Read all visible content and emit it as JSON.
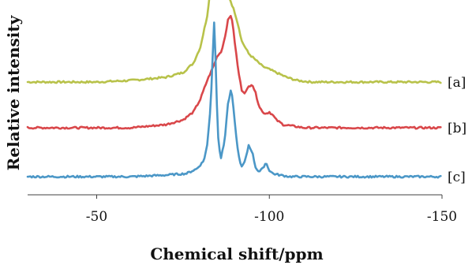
{
  "chart_data": {
    "type": "line",
    "xlabel": "Chemical shift/ppm",
    "ylabel": "Relative intensity",
    "xlim": [
      -30,
      -150
    ],
    "x_reversed": true,
    "x_ticks": [
      -50,
      -100,
      -150
    ],
    "x_tick_labels": [
      "-50",
      "-100",
      "-150"
    ],
    "y_ticks_shown": false,
    "grid": false,
    "legend": "none",
    "series": [
      {
        "name": "[a]",
        "color": "#b8c24a",
        "baseline": 0.6,
        "x": [
          -30,
          -40,
          -50,
          -60,
          -70,
          -75,
          -78,
          -80,
          -82,
          -84,
          -85,
          -86,
          -87,
          -88,
          -89,
          -90,
          -91,
          -92,
          -93,
          -94,
          -95,
          -96,
          -98,
          -100,
          -102,
          -105,
          -108,
          -112,
          -120,
          -130,
          -140,
          -150
        ],
        "y": [
          0,
          0,
          0,
          0.01,
          0.03,
          0.06,
          0.12,
          0.22,
          0.42,
          0.8,
          0.96,
          0.9,
          0.7,
          0.56,
          0.5,
          0.44,
          0.36,
          0.26,
          0.22,
          0.18,
          0.16,
          0.14,
          0.1,
          0.08,
          0.06,
          0.03,
          0.01,
          0,
          0,
          0,
          0,
          0
        ]
      },
      {
        "name": "[b]",
        "color": "#d9474a",
        "baseline": 0.31,
        "x": [
          -30,
          -40,
          -50,
          -60,
          -70,
          -75,
          -78,
          -80,
          -82,
          -84,
          -85,
          -86,
          -87,
          -88,
          -89,
          -90,
          -91,
          -92,
          -93,
          -94,
          -95,
          -96,
          -97,
          -98,
          -99,
          -100,
          -101,
          -102,
          -104,
          -107,
          -110,
          -120,
          -130,
          -140,
          -150
        ],
        "y": [
          0,
          0,
          0,
          0,
          0.02,
          0.05,
          0.1,
          0.18,
          0.3,
          0.4,
          0.46,
          0.48,
          0.56,
          0.68,
          0.72,
          0.54,
          0.36,
          0.24,
          0.22,
          0.26,
          0.28,
          0.22,
          0.14,
          0.1,
          0.09,
          0.1,
          0.08,
          0.05,
          0.02,
          0.01,
          0,
          0,
          0,
          0,
          0
        ]
      },
      {
        "name": "[c]",
        "color": "#4b97c7",
        "baseline": 0.0,
        "x": [
          -30,
          -40,
          -50,
          -60,
          -70,
          -76,
          -79,
          -81,
          -82,
          -83,
          -83.5,
          -84,
          -84.5,
          -85,
          -85.5,
          -86,
          -87,
          -88,
          -89,
          -90,
          -91,
          -92,
          -93,
          -94,
          -95,
          -96,
          -97,
          -98,
          -99,
          -100,
          -101,
          -103,
          -106,
          -110,
          -120,
          -130,
          -140,
          -150
        ],
        "y": [
          0,
          0,
          0,
          0,
          0.01,
          0.02,
          0.05,
          0.1,
          0.2,
          0.45,
          0.72,
          0.98,
          0.7,
          0.3,
          0.18,
          0.12,
          0.22,
          0.46,
          0.56,
          0.34,
          0.14,
          0.06,
          0.1,
          0.2,
          0.16,
          0.06,
          0.03,
          0.05,
          0.09,
          0.04,
          0.02,
          0.01,
          0,
          0,
          0,
          0,
          0,
          0
        ]
      }
    ]
  }
}
